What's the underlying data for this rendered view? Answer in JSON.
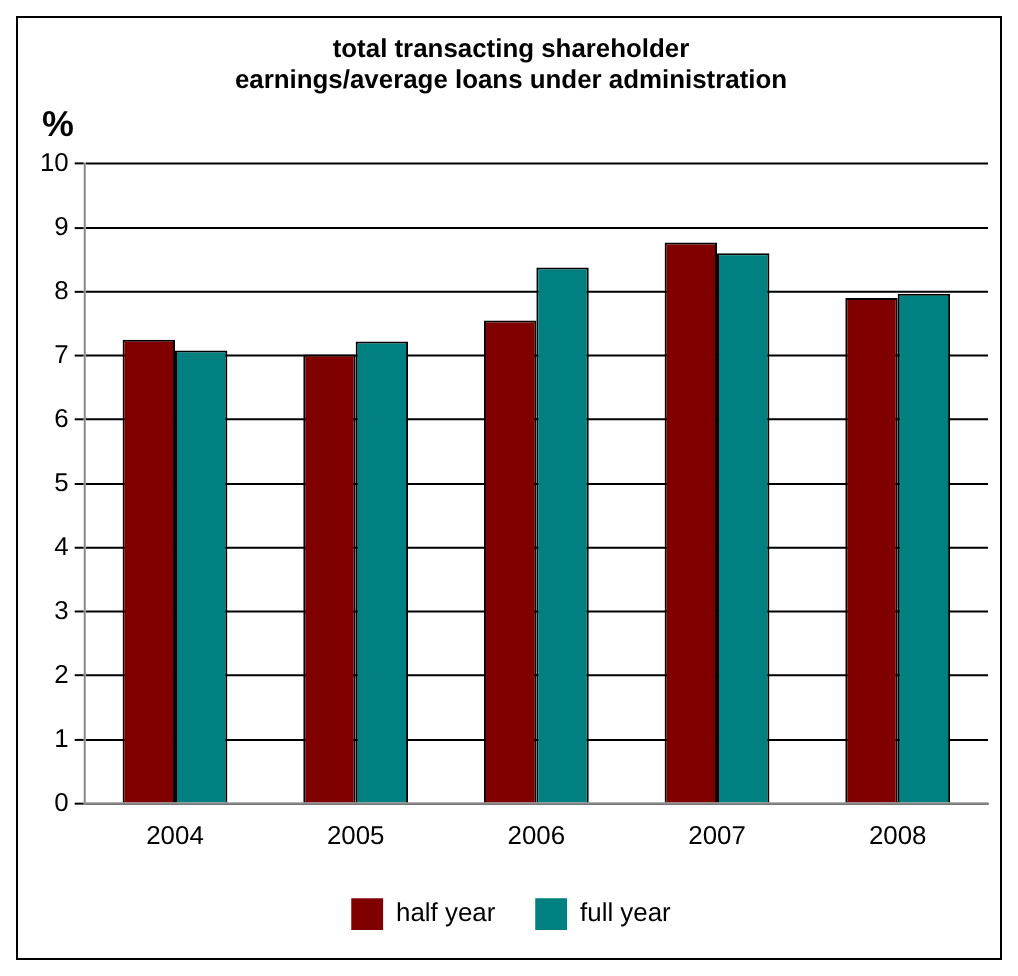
{
  "chart_data": {
    "type": "bar",
    "title": "total transacting shareholder earnings/average loans under administration",
    "ylabel": "%",
    "categories": [
      "2004",
      "2005",
      "2006",
      "2007",
      "2008"
    ],
    "series": [
      {
        "name": "half year",
        "color": "#800000",
        "values": [
          7.25,
          7.02,
          7.55,
          8.77,
          7.9
        ]
      },
      {
        "name": "full year",
        "color": "#008080",
        "values": [
          7.08,
          7.22,
          8.38,
          8.6,
          7.97
        ]
      }
    ],
    "ylim": [
      0,
      10
    ],
    "yticks": [
      0,
      1,
      2,
      3,
      4,
      5,
      6,
      7,
      8,
      9,
      10
    ],
    "grid": "y",
    "legend": "bottom"
  }
}
